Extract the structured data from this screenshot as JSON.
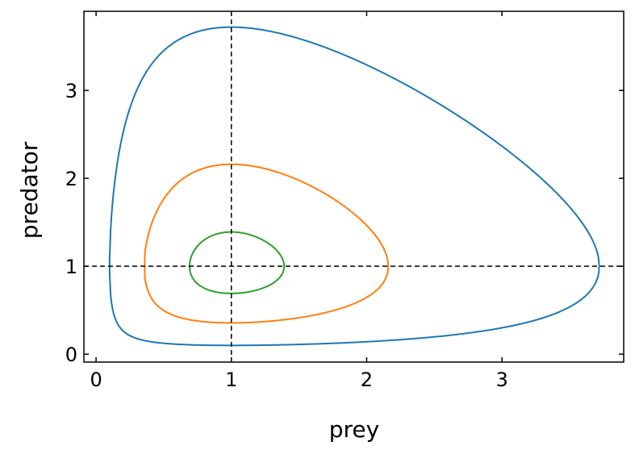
{
  "chart_data": {
    "type": "line",
    "title": "",
    "xlabel": "prey",
    "ylabel": "predator",
    "xlim": [
      -0.09,
      3.9
    ],
    "ylim": [
      -0.09,
      3.9
    ],
    "grid": false,
    "legend": "none",
    "xticks": [
      "0",
      "1",
      "2",
      "3"
    ],
    "yticks": [
      "0",
      "1",
      "2",
      "3"
    ],
    "equilibrium": {
      "x": 1,
      "y": 1
    },
    "series": [
      {
        "color": "#1f77b4",
        "min": 0.1,
        "max": 3.72
      },
      {
        "color": "#ff7f0e",
        "min": 0.36,
        "max": 2.16
      },
      {
        "color": "#2ca02c",
        "min": 0.69,
        "max": 1.39
      }
    ]
  }
}
